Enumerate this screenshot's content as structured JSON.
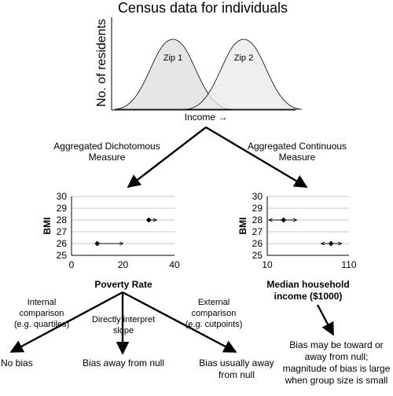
{
  "top_chart": {
    "title": "Census data for individuals",
    "ylabel": "No. of residents",
    "xlabel": "Income →",
    "curves": [
      {
        "label": "Zip 1",
        "fill": "#e6e6e6"
      },
      {
        "label": "Zip 2",
        "fill": "#ececec"
      }
    ]
  },
  "branches": {
    "left_line1": "Aggregated  Dichotomous",
    "left_line2": "Measure",
    "right_line1": "Aggregated  Continuous",
    "right_line2": "Measure"
  },
  "chart_data": [
    {
      "type": "scatter",
      "title": "",
      "xlabel": "Poverty Rate",
      "ylabel": "BMI",
      "xlim": [
        0,
        40
      ],
      "ylim": [
        25,
        30
      ],
      "x_ticks": [
        "0",
        "20",
        "40"
      ],
      "y_ticks": [
        "25",
        "26",
        "27",
        "28",
        "29",
        "30"
      ],
      "grid": true,
      "series": [
        {
          "points": [
            {
              "x": 10,
              "y": 26,
              "arrow_to_x": 20
            },
            {
              "x": 30,
              "y": 28,
              "arrow_to_x": 33
            }
          ]
        }
      ]
    },
    {
      "type": "scatter",
      "title": "",
      "xlabel": "Median household income ($1000)",
      "ylabel": "BMI",
      "xlim": [
        10,
        110
      ],
      "ylim": [
        25,
        30
      ],
      "x_ticks": [
        "10",
        "110"
      ],
      "y_ticks": [
        "25",
        "26",
        "27",
        "28",
        "29",
        "30"
      ],
      "grid": true,
      "series": [
        {
          "points": [
            {
              "x": 30,
              "y": 28,
              "arrow_from_x": 12,
              "arrow_to_x": 46
            },
            {
              "x": 88,
              "y": 26,
              "arrow_from_x": 76,
              "arrow_to_x": 101
            }
          ]
        }
      ]
    }
  ],
  "right_chart_xlabel": {
    "line1": "Median household",
    "line2": "income ($1000)"
  },
  "outcomes": {
    "internal_1": "Internal",
    "internal_2": "comparison",
    "internal_3": "(e.g. quartiles)",
    "direct_1": "Directly interpret",
    "direct_2": "slope",
    "external_1": "External",
    "external_2": "comparison",
    "external_3": "(e.g. cutpoints)",
    "no_bias": "No bias",
    "bias_away": "Bias away from null",
    "bias_usually_1": "Bias usually away",
    "bias_usually_2": "from null",
    "bias_right_1": "Bias may be toward or",
    "bias_right_2": "away from null;",
    "bias_right_3": "magnitude  of bias is large",
    "bias_right_4": "when group size is small"
  }
}
